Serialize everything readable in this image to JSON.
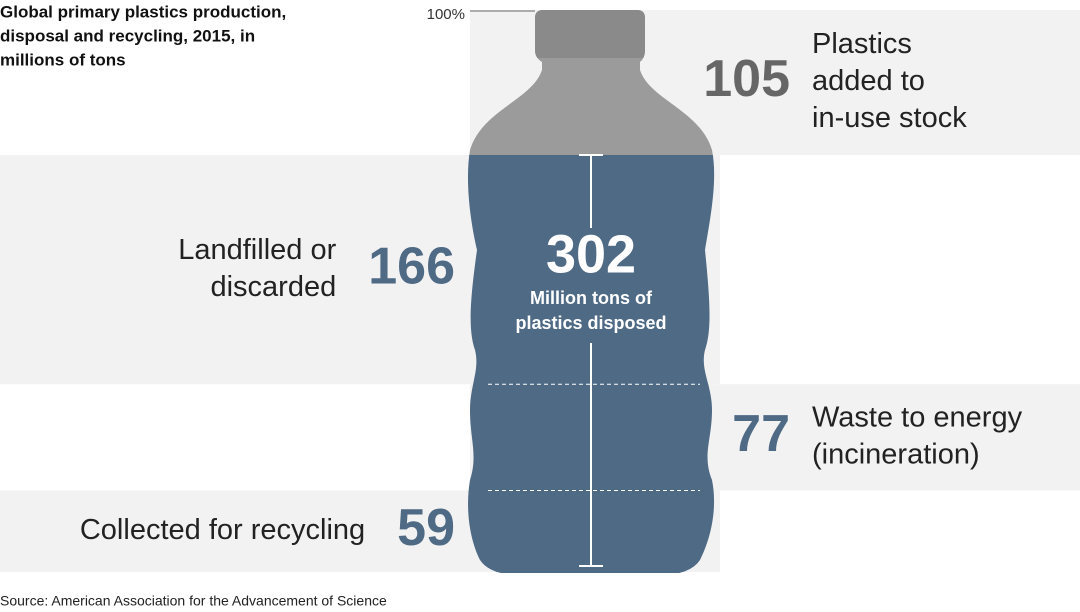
{
  "title": [
    "Global primary plastics production,",
    "disposal and recycling, 2015, in",
    "millions of tons"
  ],
  "top_label": "100%",
  "segments": [
    {
      "label": [
        "Plastics",
        "added to",
        "in-use stock"
      ],
      "value": 105
    },
    {
      "label": [
        "Landfilled or",
        "discarded"
      ],
      "value": 166
    },
    {
      "label": [
        "Waste to energy",
        "(incineration)"
      ],
      "value": 77
    },
    {
      "label": [
        "Collected for recycling"
      ],
      "value": 59
    }
  ],
  "total": {
    "value": 302,
    "label": [
      "Million tons of",
      "plastics disposed"
    ]
  },
  "source": "Source: American Association for the Advancement of Science"
}
